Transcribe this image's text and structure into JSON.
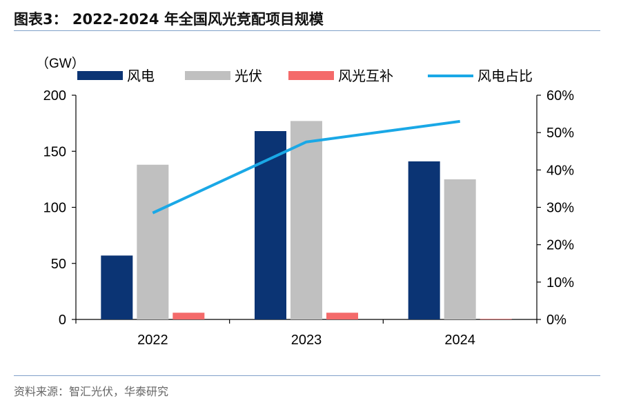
{
  "header": {
    "title": "图表3：  2022-2024 年全国风光竞配项目规模"
  },
  "footer": {
    "source": "资料来源：智汇光伏，华泰研究"
  },
  "chart_data": {
    "type": "bar",
    "unit_label": "（GW）",
    "categories": [
      "2022",
      "2023",
      "2024"
    ],
    "series": [
      {
        "name": "风电",
        "kind": "bar",
        "axis": "left",
        "color": "#0b3474",
        "values": [
          57,
          168,
          141
        ]
      },
      {
        "name": "光伏",
        "kind": "bar",
        "axis": "left",
        "color": "#c0c0c0",
        "values": [
          138,
          177,
          125
        ]
      },
      {
        "name": "风光互补",
        "kind": "bar",
        "axis": "left",
        "color": "#f46a6a",
        "values": [
          6,
          6,
          0.5
        ]
      },
      {
        "name": "风电占比",
        "kind": "line",
        "axis": "right",
        "color": "#1aa8e6",
        "values": [
          28.5,
          47.5,
          53
        ]
      }
    ],
    "y_left": {
      "min": 0,
      "max": 200,
      "ticks": [
        0,
        50,
        100,
        150,
        200
      ]
    },
    "y_right": {
      "min": 0,
      "max": 60,
      "ticks": [
        0,
        10,
        20,
        30,
        40,
        50,
        60
      ],
      "format": "percent"
    },
    "legend_position": "top",
    "grid": false
  }
}
